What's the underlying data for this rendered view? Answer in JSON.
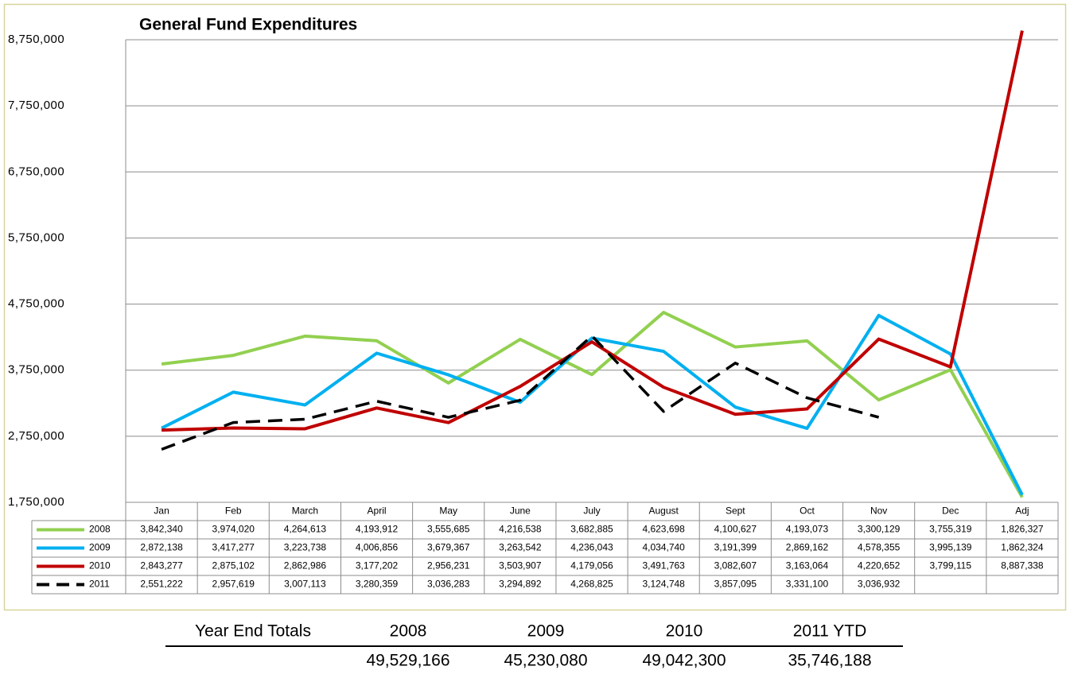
{
  "chart_data": {
    "type": "line",
    "title": "General Fund Expenditures",
    "categories": [
      "Jan",
      "Feb",
      "March",
      "April",
      "May",
      "June",
      "July",
      "August",
      "Sept",
      "Oct",
      "Nov",
      "Dec",
      "Adj"
    ],
    "series": [
      {
        "name": "2008",
        "color": "#92d050",
        "dash": false,
        "values": [
          3842340,
          3974020,
          4264613,
          4193912,
          3555685,
          4216538,
          3682885,
          4623698,
          4100627,
          4193073,
          3300129,
          3755319,
          1826327
        ],
        "value_labels": [
          "3,842,340",
          "3,974,020",
          "4,264,613",
          "4,193,912",
          "3,555,685",
          "4,216,538",
          "3,682,885",
          "4,623,698",
          "4,100,627",
          "4,193,073",
          "3,300,129",
          "3,755,319",
          "1,826,327"
        ]
      },
      {
        "name": "2009",
        "color": "#00b0f0",
        "dash": false,
        "values": [
          2872138,
          3417277,
          3223738,
          4006856,
          3679367,
          3263542,
          4236043,
          4034740,
          3191399,
          2869162,
          4578355,
          3995139,
          1862324
        ],
        "value_labels": [
          "2,872,138",
          "3,417,277",
          "3,223,738",
          "4,006,856",
          "3,679,367",
          "3,263,542",
          "4,236,043",
          "4,034,740",
          "3,191,399",
          "2,869,162",
          "4,578,355",
          "3,995,139",
          "1,862,324"
        ]
      },
      {
        "name": "2010",
        "color": "#c00000",
        "dash": false,
        "values": [
          2843277,
          2875102,
          2862986,
          3177202,
          2956231,
          3503907,
          4179056,
          3491763,
          3082607,
          3163064,
          4220652,
          3799115,
          8887338
        ],
        "value_labels": [
          "2,843,277",
          "2,875,102",
          "2,862,986",
          "3,177,202",
          "2,956,231",
          "3,503,907",
          "4,179,056",
          "3,491,763",
          "3,082,607",
          "3,163,064",
          "4,220,652",
          "3,799,115",
          "8,887,338"
        ]
      },
      {
        "name": "2011",
        "color": "#000000",
        "dash": true,
        "values": [
          2551222,
          2957619,
          3007113,
          3280359,
          3036283,
          3294892,
          4268825,
          3124748,
          3857095,
          3331100,
          3036932,
          null,
          null
        ],
        "value_labels": [
          "2,551,222",
          "2,957,619",
          "3,007,113",
          "3,280,359",
          "3,036,283",
          "3,294,892",
          "4,268,825",
          "3,124,748",
          "3,857,095",
          "3,331,100",
          "3,036,932",
          null,
          null
        ]
      }
    ],
    "ylim": [
      1750000,
      8750000
    ],
    "yticks": [
      {
        "value": 1750000,
        "label": "1,750,000"
      },
      {
        "value": 2750000,
        "label": "2,750,000"
      },
      {
        "value": 3750000,
        "label": "3,750,000"
      },
      {
        "value": 4750000,
        "label": "4,750,000"
      },
      {
        "value": 5750000,
        "label": "5,750,000"
      },
      {
        "value": 6750000,
        "label": "6,750,000"
      },
      {
        "value": 7750000,
        "label": "7,750,000"
      },
      {
        "value": 8750000,
        "label": "8,750,000"
      }
    ],
    "grid": true
  },
  "summary": {
    "title": "Year End Totals",
    "columns": [
      "2008",
      "2009",
      "2010",
      "2011 YTD"
    ],
    "values": [
      "49,529,166",
      "45,230,080",
      "49,042,300",
      "35,746,188"
    ]
  }
}
